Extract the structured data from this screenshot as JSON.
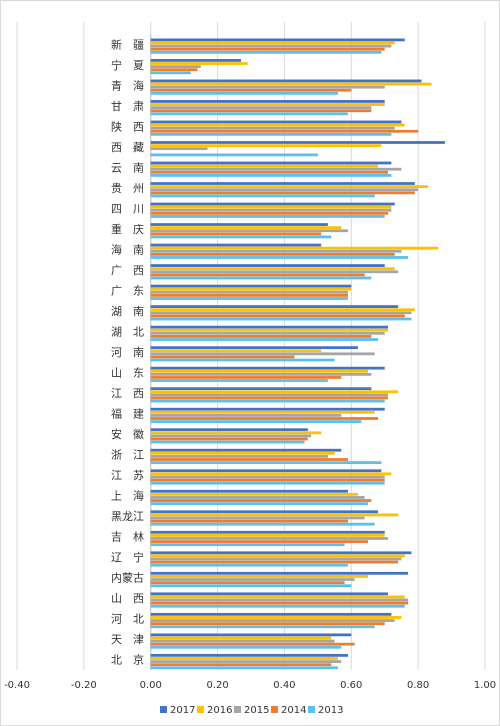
{
  "chart_data": {
    "type": "bar",
    "orientation": "horizontal",
    "categories": [
      "新　疆",
      "宁　夏",
      "青　海",
      "甘　肃",
      "陕　西",
      "西　藏",
      "云　南",
      "贵　州",
      "四　川",
      "重　庆",
      "海　南",
      "广　西",
      "广　东",
      "湖　南",
      "湖　北",
      "河　南",
      "山　东",
      "江　西",
      "福　建",
      "安　徽",
      "浙　江",
      "江　苏",
      "上　海",
      "黑龙江",
      "吉　林",
      "辽　宁",
      "内蒙古",
      "山　西",
      "河　北",
      "天　津",
      "北　京"
    ],
    "series": [
      {
        "name": "2017",
        "color": "#4472C4",
        "values": [
          0.76,
          0.27,
          0.81,
          0.7,
          0.75,
          0.88,
          0.72,
          0.79,
          0.73,
          0.53,
          0.51,
          0.7,
          0.6,
          0.74,
          0.71,
          0.62,
          0.7,
          0.66,
          0.7,
          0.47,
          0.57,
          0.69,
          0.59,
          0.68,
          0.7,
          0.78,
          0.77,
          0.71,
          0.72,
          0.6,
          0.59
        ]
      },
      {
        "name": "2016",
        "color": "#FFC000",
        "values": [
          0.73,
          0.29,
          0.84,
          0.7,
          0.76,
          0.69,
          0.68,
          0.83,
          0.72,
          0.57,
          0.86,
          0.73,
          0.6,
          0.79,
          0.71,
          0.51,
          0.65,
          0.74,
          0.67,
          0.51,
          0.55,
          0.72,
          0.62,
          0.74,
          0.7,
          0.76,
          0.65,
          0.76,
          0.75,
          0.54,
          0.56
        ]
      },
      {
        "name": "2015",
        "color": "#A5A5A5",
        "values": [
          0.72,
          0.15,
          0.7,
          0.66,
          0.73,
          0.17,
          0.75,
          0.8,
          0.72,
          0.59,
          0.75,
          0.74,
          0.59,
          0.78,
          0.7,
          0.67,
          0.66,
          0.71,
          0.57,
          0.48,
          0.53,
          0.7,
          0.64,
          0.64,
          0.71,
          0.75,
          0.61,
          0.77,
          0.73,
          0.55,
          0.57
        ]
      },
      {
        "name": "2014",
        "color": "#ED7D31",
        "values": [
          0.7,
          0.14,
          0.6,
          0.66,
          0.8,
          0.0,
          0.71,
          0.79,
          0.71,
          0.51,
          0.73,
          0.64,
          0.59,
          0.76,
          0.66,
          0.43,
          0.57,
          0.71,
          0.68,
          0.47,
          0.59,
          0.7,
          0.66,
          0.59,
          0.65,
          0.74,
          0.58,
          0.77,
          0.7,
          0.61,
          0.54
        ]
      },
      {
        "name": "2013",
        "color": "#5BC0EB",
        "values": [
          0.69,
          0.12,
          0.56,
          0.59,
          0.72,
          0.5,
          0.72,
          0.67,
          0.7,
          0.54,
          0.77,
          0.66,
          0.59,
          0.78,
          0.68,
          0.55,
          0.53,
          0.7,
          0.63,
          0.46,
          0.69,
          0.7,
          0.65,
          0.67,
          0.58,
          0.59,
          0.6,
          0.76,
          0.67,
          0.57,
          0.56
        ]
      }
    ],
    "xlim": [
      -0.4,
      1.0
    ],
    "xticks": [
      "-0.40",
      "-0.20",
      "0.00",
      "0.20",
      "0.40",
      "0.60",
      "0.80",
      "1.00"
    ],
    "grid": "vertical",
    "legend_position": "bottom",
    "title": "",
    "xlabel": "",
    "ylabel": ""
  }
}
